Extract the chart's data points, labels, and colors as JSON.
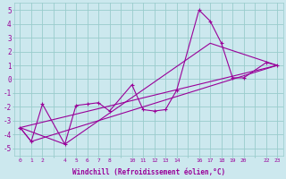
{
  "xlabel": "Windchill (Refroidissement éolien,°C)",
  "background_color": "#cce8ee",
  "grid_color": "#99cccc",
  "line_color": "#990099",
  "ylim": [
    -5.5,
    5.5
  ],
  "yticks": [
    -5,
    -4,
    -3,
    -2,
    -1,
    0,
    1,
    2,
    3,
    4,
    5
  ],
  "xtick_labels": [
    "0",
    "1",
    "2",
    "",
    "4",
    "5",
    "6",
    "7",
    "8",
    "",
    "10",
    "11",
    "12",
    "13",
    "14",
    "",
    "16",
    "17",
    "18",
    "19",
    "20",
    "",
    "22",
    "23"
  ],
  "xtick_positions": [
    0,
    1,
    2,
    3,
    4,
    5,
    6,
    7,
    8,
    9,
    10,
    11,
    12,
    13,
    14,
    15,
    16,
    17,
    18,
    19,
    20,
    21,
    22,
    23
  ],
  "series1_x": [
    0,
    1,
    2,
    4,
    5,
    6,
    7,
    8,
    10,
    11,
    12,
    13,
    14,
    16,
    17,
    18,
    19,
    20,
    22,
    23
  ],
  "series1_y": [
    -3.5,
    -4.5,
    -1.8,
    -4.7,
    -1.9,
    -1.8,
    -1.7,
    -2.3,
    -0.4,
    -2.2,
    -2.3,
    -2.2,
    -0.8,
    5.0,
    4.2,
    2.6,
    0.1,
    0.1,
    1.2,
    1.0
  ],
  "line2_x": [
    0,
    23
  ],
  "line2_y": [
    -3.5,
    1.0
  ],
  "line3_x": [
    0,
    1,
    23
  ],
  "line3_y": [
    -3.5,
    -4.5,
    1.0
  ],
  "line4_x": [
    0,
    4,
    17,
    23
  ],
  "line4_y": [
    -3.5,
    -4.7,
    2.6,
    1.0
  ]
}
